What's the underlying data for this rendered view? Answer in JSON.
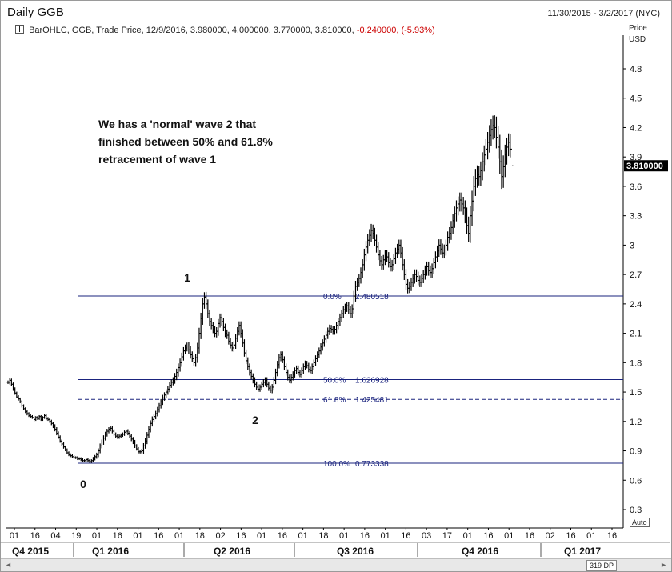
{
  "window": {
    "title": "Daily GGB",
    "date_range": "11/30/2015 - 3/2/2017 (NYC)"
  },
  "legend": {
    "text": "BarOHLC, GGB, Trade Price, 12/9/2016, 3.980000, 4.000000, 3.770000, 3.810000,",
    "change": "-0.240000, (-5.93%)"
  },
  "price_axis": {
    "label_top": "Price",
    "label_unit": "USD",
    "last_price": "3.810000",
    "auto_label": "Auto"
  },
  "annotation": {
    "line1": "We has a 'normal' wave 2 that",
    "line2": "finished between 50% and 61.8%",
    "line3": "retracement of wave 1"
  },
  "footer": {
    "dp_label": "319 DP",
    "scroll_left": "◄",
    "scroll_right": "►"
  },
  "colors": {
    "fib_line": "#1a237e",
    "fib_text": "#1a237e",
    "bars": "#000000",
    "change": "#cc0000"
  },
  "chart_data": {
    "type": "bar",
    "subtype": "ohlc",
    "ylim": [
      0.2,
      5.0
    ],
    "y_ticks": [
      "0.3",
      "0.6",
      "0.9",
      "1.2",
      "1.5",
      "1.8",
      "2.1",
      "2.4",
      "2.7",
      "3",
      "3.3",
      "3.6",
      "3.9",
      "4.2",
      "4.5",
      "4.8"
    ],
    "x_tick_labels": [
      "01",
      "16",
      "04",
      "19",
      "01",
      "16",
      "01",
      "16",
      "01",
      "18",
      "02",
      "16",
      "01",
      "16",
      "01",
      "18",
      "01",
      "16",
      "01",
      "16",
      "03",
      "17",
      "01",
      "16",
      "01",
      "16",
      "02",
      "16",
      "01",
      "16"
    ],
    "quarters": [
      "Q4 2015",
      "Q1 2016",
      "Q2 2016",
      "Q3 2016",
      "Q4 2016",
      "Q1 2017"
    ],
    "fib_levels": [
      {
        "label": "0.0%",
        "value": "2.480518",
        "price": 2.480518,
        "style": "solid"
      },
      {
        "label": "50.0%",
        "value": "1.626928",
        "price": 1.626928,
        "style": "solid"
      },
      {
        "label": "61.8%",
        "value": "1.425481",
        "price": 1.425481,
        "style": "dashed"
      },
      {
        "label": "100.0%",
        "value": "0.773338",
        "price": 0.773338,
        "style": "solid"
      }
    ],
    "wave_labels": [
      {
        "text": "0",
        "price": 0.773338,
        "bar_index": 72
      },
      {
        "text": "1",
        "price": 2.48,
        "bar_index": 160
      },
      {
        "text": "2",
        "price": 1.5,
        "bar_index": 216
      }
    ],
    "closes": [
      1.6,
      1.62,
      1.58,
      1.53,
      1.49,
      1.45,
      1.43,
      1.4,
      1.36,
      1.33,
      1.3,
      1.28,
      1.26,
      1.25,
      1.24,
      1.22,
      1.24,
      1.23,
      1.25,
      1.22,
      1.24,
      1.26,
      1.23,
      1.22,
      1.2,
      1.18,
      1.15,
      1.12,
      1.08,
      1.04,
      1.0,
      0.97,
      0.94,
      0.91,
      0.88,
      0.86,
      0.85,
      0.84,
      0.83,
      0.83,
      0.82,
      0.82,
      0.81,
      0.8,
      0.8,
      0.81,
      0.8,
      0.79,
      0.8,
      0.82,
      0.84,
      0.86,
      0.9,
      0.95,
      0.99,
      1.03,
      1.07,
      1.1,
      1.12,
      1.13,
      1.1,
      1.07,
      1.05,
      1.04,
      1.05,
      1.06,
      1.07,
      1.09,
      1.1,
      1.08,
      1.05,
      1.02,
      0.99,
      0.95,
      0.92,
      0.89,
      0.89,
      0.9,
      0.95,
      1.0,
      1.06,
      1.12,
      1.18,
      1.22,
      1.25,
      1.28,
      1.32,
      1.36,
      1.4,
      1.44,
      1.47,
      1.5,
      1.53,
      1.57,
      1.6,
      1.62,
      1.66,
      1.7,
      1.75,
      1.8,
      1.86,
      1.92,
      1.95,
      1.97,
      1.93,
      1.88,
      1.84,
      1.8,
      1.85,
      1.95,
      2.1,
      2.25,
      2.4,
      2.47,
      2.4,
      2.3,
      2.22,
      2.18,
      2.14,
      2.1,
      2.12,
      2.2,
      2.26,
      2.22,
      2.16,
      2.1,
      2.08,
      2.02,
      1.98,
      1.95,
      1.98,
      2.05,
      2.12,
      2.18,
      2.1,
      2.0,
      1.9,
      1.82,
      1.76,
      1.7,
      1.66,
      1.62,
      1.58,
      1.55,
      1.53,
      1.55,
      1.58,
      1.6,
      1.62,
      1.58,
      1.54,
      1.52,
      1.55,
      1.62,
      1.7,
      1.78,
      1.85,
      1.88,
      1.83,
      1.76,
      1.7,
      1.65,
      1.62,
      1.65,
      1.68,
      1.72,
      1.74,
      1.7,
      1.68,
      1.72,
      1.76,
      1.79,
      1.77,
      1.73,
      1.72,
      1.76,
      1.8,
      1.84,
      1.88,
      1.92,
      1.96,
      2.0,
      2.04,
      2.08,
      2.12,
      2.15,
      2.14,
      2.12,
      2.14,
      2.18,
      2.22,
      2.26,
      2.3,
      2.34,
      2.36,
      2.38,
      2.34,
      2.3,
      2.35,
      2.48,
      2.58,
      2.62,
      2.66,
      2.72,
      2.8,
      2.9,
      2.98,
      3.05,
      3.1,
      3.15,
      3.12,
      3.05,
      2.98,
      2.9,
      2.84,
      2.8,
      2.85,
      2.9,
      2.88,
      2.82,
      2.78,
      2.8,
      2.86,
      2.92,
      2.96,
      3.0,
      2.92,
      2.8,
      2.7,
      2.6,
      2.56,
      2.58,
      2.62,
      2.66,
      2.7,
      2.68,
      2.64,
      2.62,
      2.66,
      2.7,
      2.74,
      2.78,
      2.74,
      2.72,
      2.76,
      2.82,
      2.88,
      2.94,
      3.0,
      2.96,
      2.92,
      2.95,
      3.0,
      3.08,
      3.12,
      3.18,
      3.25,
      3.32,
      3.38,
      3.42,
      3.46,
      3.42,
      3.38,
      3.3,
      3.2,
      3.12,
      3.3,
      3.45,
      3.6,
      3.68,
      3.72,
      3.7,
      3.76,
      3.85,
      3.92,
      3.98,
      4.05,
      4.12,
      4.18,
      4.22,
      4.2,
      4.1,
      4.0,
      3.85,
      3.7,
      3.8,
      3.92,
      4.0,
      4.05,
      3.98,
      3.81
    ],
    "ranges": [
      0.05,
      0.06,
      0.05,
      0.05,
      0.05,
      0.04,
      0.05,
      0.04,
      0.05,
      0.04,
      0.04,
      0.05,
      0.04,
      0.04,
      0.04,
      0.05,
      0.04,
      0.04,
      0.04,
      0.04,
      0.04,
      0.04,
      0.05,
      0.04,
      0.04,
      0.05,
      0.05,
      0.06,
      0.06,
      0.05,
      0.05,
      0.05,
      0.05,
      0.04,
      0.04,
      0.04,
      0.04,
      0.04,
      0.04,
      0.04,
      0.04,
      0.04,
      0.04,
      0.04,
      0.04,
      0.04,
      0.04,
      0.04,
      0.04,
      0.05,
      0.05,
      0.06,
      0.07,
      0.07,
      0.07,
      0.08,
      0.07,
      0.07,
      0.06,
      0.06,
      0.06,
      0.06,
      0.05,
      0.05,
      0.05,
      0.05,
      0.05,
      0.05,
      0.05,
      0.06,
      0.06,
      0.06,
      0.06,
      0.06,
      0.05,
      0.05,
      0.05,
      0.06,
      0.08,
      0.08,
      0.09,
      0.09,
      0.09,
      0.09,
      0.08,
      0.08,
      0.08,
      0.08,
      0.08,
      0.09,
      0.08,
      0.08,
      0.08,
      0.09,
      0.08,
      0.09,
      0.1,
      0.11,
      0.12,
      0.12,
      0.12,
      0.11,
      0.1,
      0.1,
      0.11,
      0.11,
      0.1,
      0.1,
      0.12,
      0.15,
      0.16,
      0.17,
      0.18,
      0.14,
      0.15,
      0.13,
      0.12,
      0.11,
      0.11,
      0.11,
      0.12,
      0.13,
      0.12,
      0.12,
      0.11,
      0.11,
      0.11,
      0.1,
      0.1,
      0.1,
      0.11,
      0.11,
      0.12,
      0.12,
      0.12,
      0.12,
      0.11,
      0.1,
      0.1,
      0.09,
      0.09,
      0.09,
      0.09,
      0.08,
      0.08,
      0.08,
      0.08,
      0.09,
      0.09,
      0.09,
      0.08,
      0.08,
      0.09,
      0.1,
      0.11,
      0.11,
      0.11,
      0.1,
      0.1,
      0.1,
      0.09,
      0.09,
      0.08,
      0.09,
      0.09,
      0.09,
      0.09,
      0.09,
      0.08,
      0.09,
      0.09,
      0.09,
      0.08,
      0.08,
      0.08,
      0.09,
      0.09,
      0.1,
      0.1,
      0.1,
      0.11,
      0.11,
      0.11,
      0.11,
      0.11,
      0.11,
      0.1,
      0.1,
      0.1,
      0.11,
      0.11,
      0.12,
      0.12,
      0.12,
      0.12,
      0.12,
      0.12,
      0.12,
      0.13,
      0.15,
      0.16,
      0.14,
      0.14,
      0.15,
      0.16,
      0.18,
      0.18,
      0.18,
      0.18,
      0.19,
      0.17,
      0.16,
      0.16,
      0.15,
      0.15,
      0.14,
      0.14,
      0.15,
      0.14,
      0.14,
      0.14,
      0.14,
      0.15,
      0.15,
      0.15,
      0.16,
      0.16,
      0.17,
      0.16,
      0.16,
      0.15,
      0.14,
      0.14,
      0.14,
      0.15,
      0.15,
      0.14,
      0.14,
      0.14,
      0.14,
      0.15,
      0.15,
      0.15,
      0.15,
      0.15,
      0.15,
      0.16,
      0.16,
      0.17,
      0.17,
      0.16,
      0.16,
      0.16,
      0.17,
      0.18,
      0.19,
      0.2,
      0.21,
      0.22,
      0.22,
      0.22,
      0.22,
      0.21,
      0.22,
      0.24,
      0.26,
      0.28,
      0.3,
      0.3,
      0.28,
      0.27,
      0.26,
      0.27,
      0.28,
      0.28,
      0.29,
      0.3,
      0.3,
      0.3,
      0.29,
      0.3,
      0.32,
      0.34,
      0.36,
      0.36,
      0.33,
      0.3,
      0.28,
      0.26,
      0.24
    ]
  }
}
